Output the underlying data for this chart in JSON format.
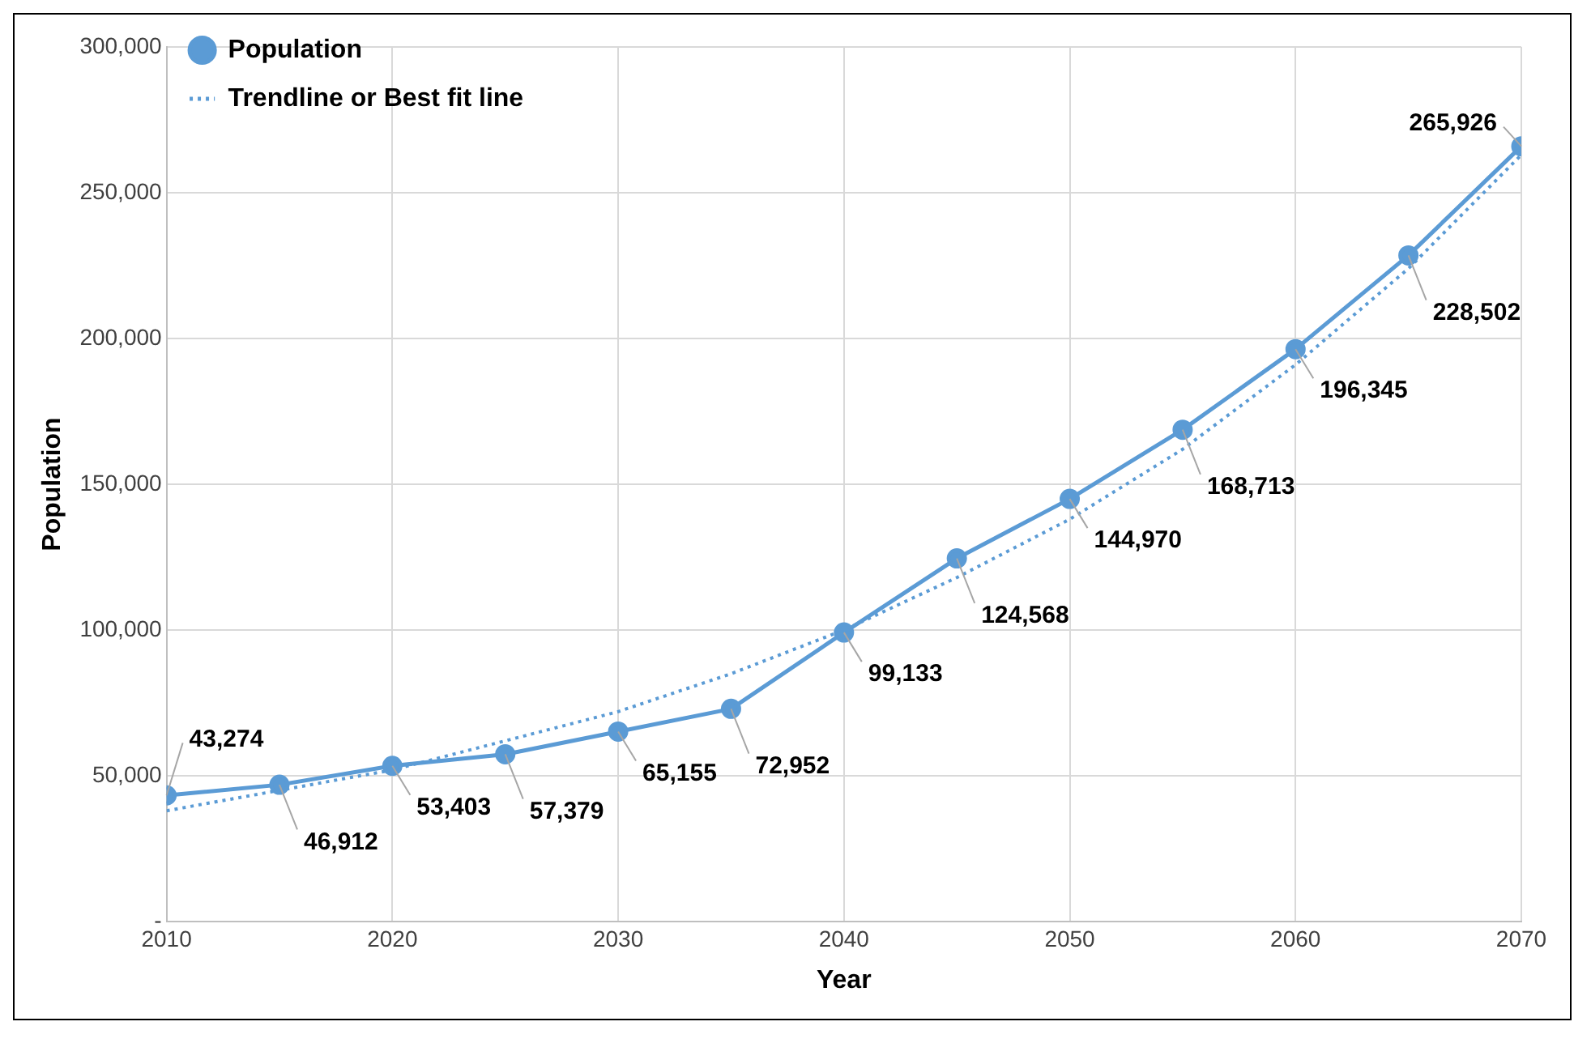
{
  "chart_data": {
    "type": "line",
    "xlabel": "Year",
    "ylabel": "Population",
    "x": [
      2010,
      2015,
      2020,
      2025,
      2030,
      2035,
      2040,
      2045,
      2050,
      2055,
      2060,
      2065,
      2070
    ],
    "series": [
      {
        "name": "Population",
        "color": "#5b9bd5",
        "marker": "circle",
        "line_style": "solid",
        "values": [
          43274,
          46912,
          53403,
          57379,
          65155,
          72952,
          99133,
          124568,
          144970,
          168713,
          196345,
          228502,
          265926
        ],
        "value_labels": [
          "43,274",
          "46,912",
          "53,403",
          "57,379",
          "65,155",
          "72,952",
          "99,133",
          "124,568",
          "144,970",
          "168,713",
          "196,345",
          "228,502",
          "265,926"
        ]
      },
      {
        "name": "Trendline or Best fit line",
        "color": "#5b9bd5",
        "marker": "none",
        "line_style": "dotted",
        "values": [
          38000,
          45000,
          52000,
          62000,
          72000,
          85000,
          100000,
          118000,
          138000,
          162000,
          191000,
          224000,
          263000
        ]
      }
    ],
    "xlim": [
      2010,
      2070
    ],
    "xticks": [
      2010,
      2020,
      2030,
      2040,
      2050,
      2060,
      2070
    ],
    "ylim": [
      0,
      300000
    ],
    "yticks": [
      {
        "value": 0,
        "label": "-"
      },
      {
        "value": 50000,
        "label": "50,000"
      },
      {
        "value": 100000,
        "label": "100,000"
      },
      {
        "value": 150000,
        "label": "150,000"
      },
      {
        "value": 200000,
        "label": "200,000"
      },
      {
        "value": 250000,
        "label": "250,000"
      },
      {
        "value": 300000,
        "label": "300,000"
      }
    ],
    "grid": true,
    "legend": "top left"
  }
}
